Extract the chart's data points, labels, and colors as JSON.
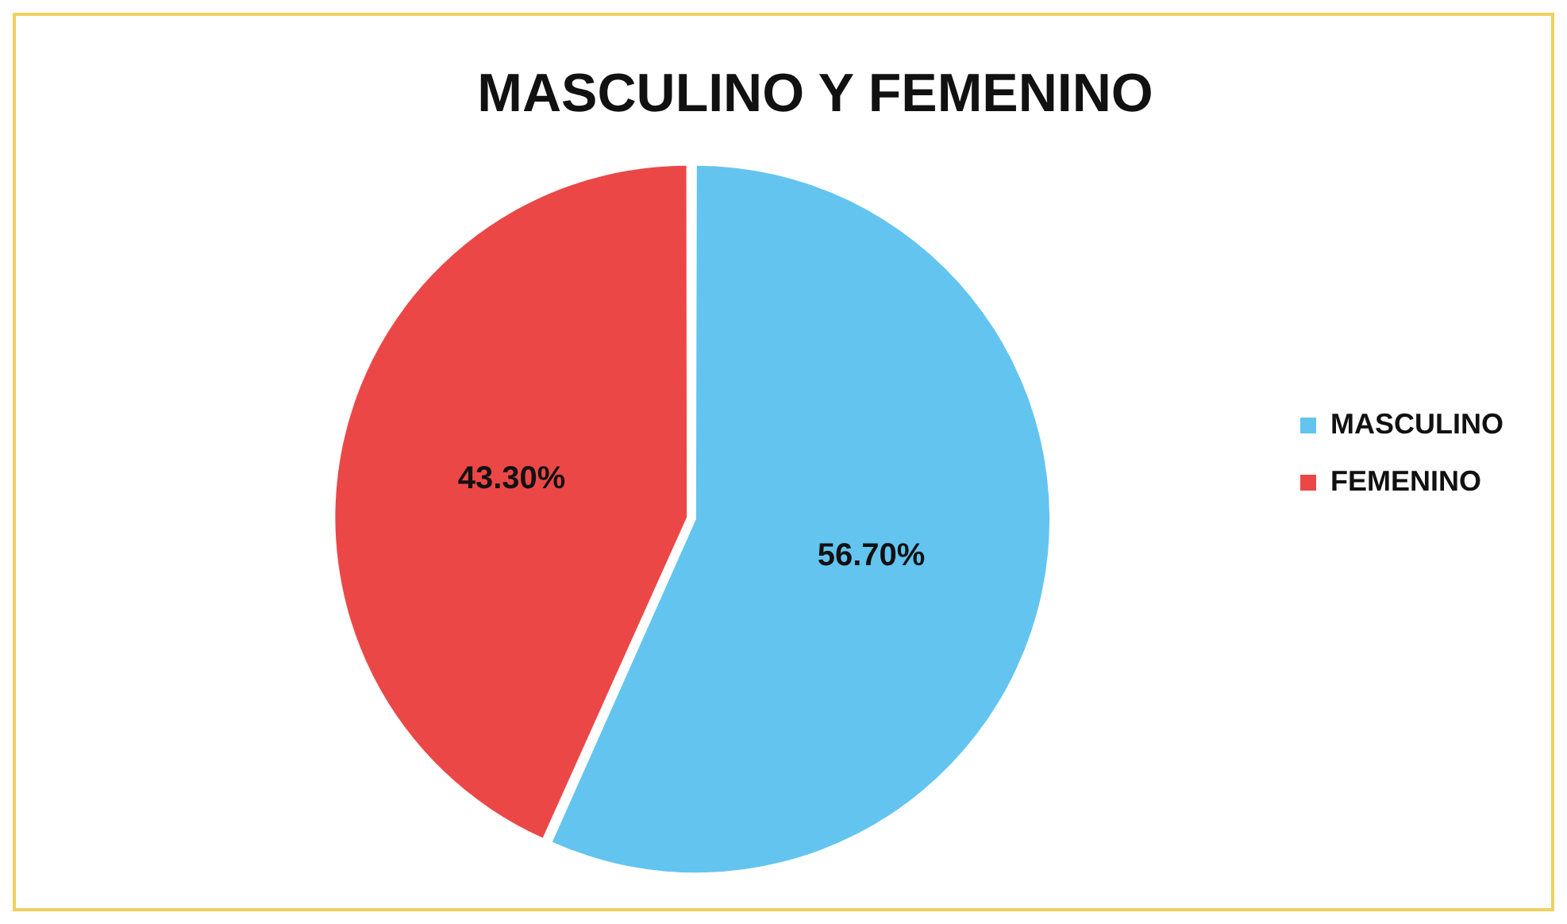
{
  "chart_data": {
    "type": "pie",
    "title": "MASCULINO Y FEMENINO",
    "categories": [
      "MASCULINO",
      "FEMENINO"
    ],
    "values": [
      56.7,
      43.3
    ],
    "colors": [
      "#63c4f0",
      "#ec4747"
    ],
    "value_labels": [
      "56.70%",
      "43.30%"
    ],
    "legend": "right"
  }
}
